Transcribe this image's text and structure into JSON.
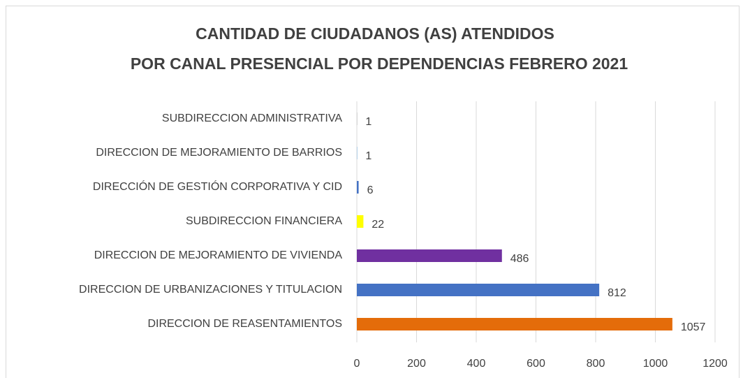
{
  "chart_data": {
    "type": "hbar",
    "title": [
      "CANTIDAD DE CIUDADANOS (AS) ATENDIDOS",
      "POR CANAL PRESENCIAL POR DEPENDENCIAS FEBRERO 2021"
    ],
    "categories": [
      "SUBDIRECCION ADMINISTRATIVA",
      "DIRECCION DE MEJORAMIENTO DE BARRIOS",
      "DIRECCIÓN DE GESTIÓN CORPORATIVA Y CID",
      "SUBDIRECCION FINANCIERA",
      "DIRECCION DE MEJORAMIENTO DE VIVIENDA",
      "DIRECCION DE URBANIZACIONES Y TITULACION",
      "DIRECCION DE REASENTAMIENTOS"
    ],
    "values": [
      1,
      1,
      6,
      22,
      486,
      812,
      1057
    ],
    "colors": [
      "#a5a5a5",
      "#5b9bd5",
      "#4472c4",
      "#ffff00",
      "#7030a0",
      "#4472c4",
      "#e46c0a"
    ],
    "xlim": [
      0,
      1200
    ],
    "xticks": [
      0,
      200,
      400,
      600,
      800,
      1000,
      1200
    ],
    "grid": true
  }
}
